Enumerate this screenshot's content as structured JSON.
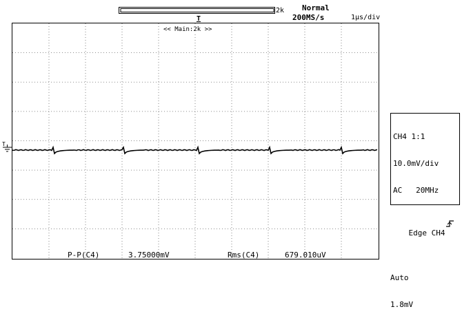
{
  "header": {
    "record_length": "2k",
    "mode": "Normal",
    "sample_rate": "200MS/s",
    "timebase": "1µs/div",
    "trigger_marker": "T",
    "window_label": "<< Main:2k >>"
  },
  "channel_info": {
    "line1": "CH4 1:1",
    "line2": "10.0mV/div",
    "line3": "AC   20MHz"
  },
  "trigger_info": {
    "line1": "Edge CH4",
    "line2": "Auto",
    "line3": "1.8mV"
  },
  "level_marker": "T",
  "measurements": {
    "pp_label": "P-P(C4)",
    "pp_value": "3.75000mV",
    "rms_label": "Rms(C4)",
    "rms_value": "679.010uV"
  }
}
